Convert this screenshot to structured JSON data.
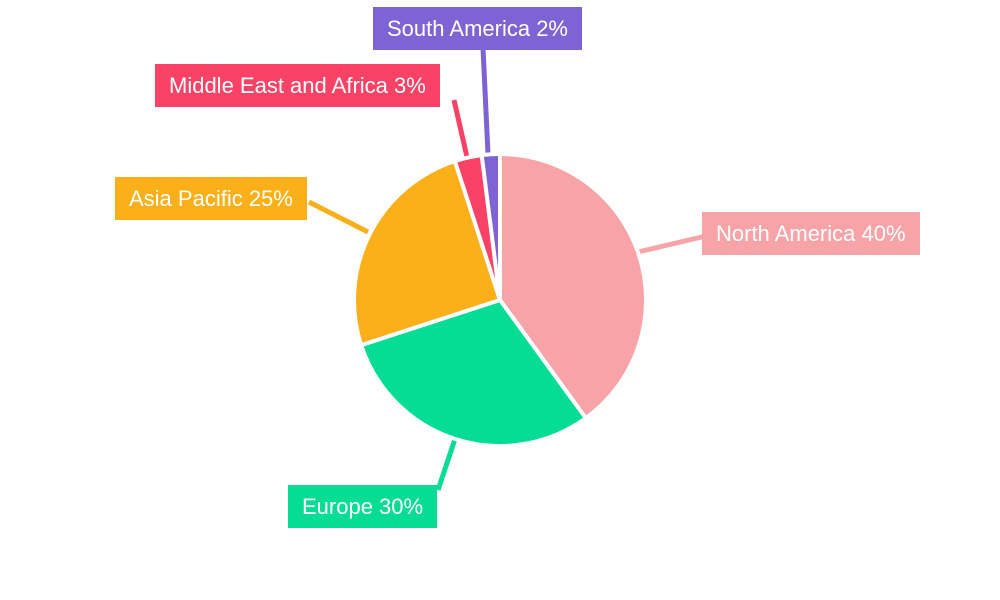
{
  "chart_data": {
    "type": "pie",
    "title": "",
    "unit": "%",
    "start_angle_deg": 0,
    "direction": "clockwise",
    "slice_border_color": "#FFFFFF",
    "background": "#FFFFFF",
    "label_style": "colored-callout-boxes-with-leader-lines",
    "label_text_color": "#FFFFFF",
    "legend_position": "none",
    "segments": [
      {
        "label": "North America",
        "value": 40,
        "display": "North America 40%",
        "color": "#F8A3A8"
      },
      {
        "label": "Europe",
        "value": 30,
        "display": "Europe 30%",
        "color": "#06DD94"
      },
      {
        "label": "Asia Pacific",
        "value": 25,
        "display": "Asia Pacific 25%",
        "color": "#FBAF18"
      },
      {
        "label": "Middle East and Africa",
        "value": 3,
        "display": "Middle East and Africa 3%",
        "color": "#FA4266"
      },
      {
        "label": "South America",
        "value": 2,
        "display": "South America 2%",
        "color": "#7D63D3"
      }
    ]
  }
}
